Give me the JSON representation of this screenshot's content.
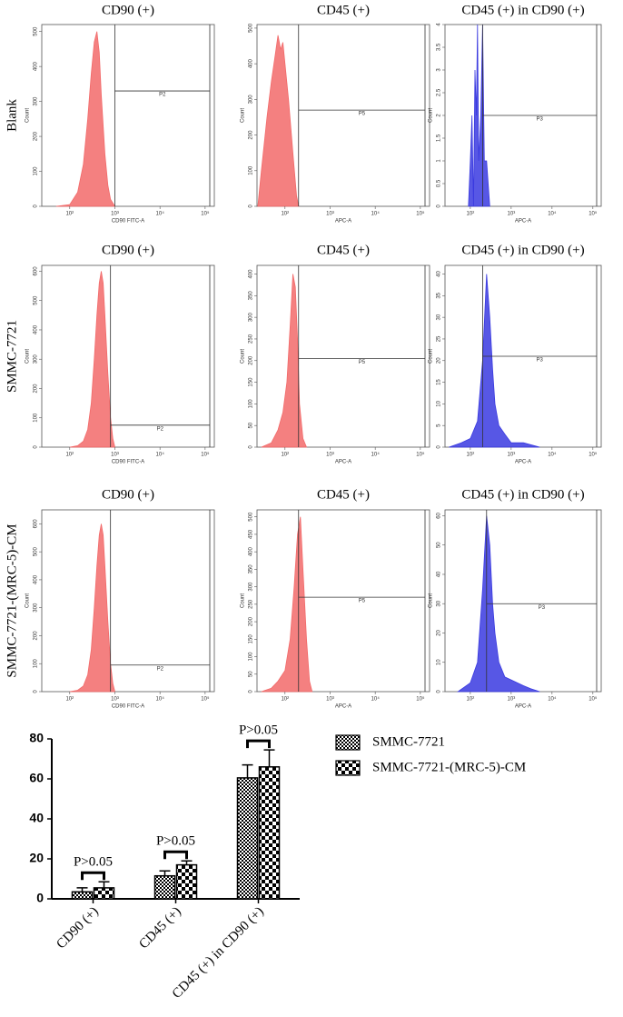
{
  "row_labels": [
    "Blank",
    "SMMC-7721",
    "SMMC-7721-(MRC-5)-CM"
  ],
  "chart_data": [
    {
      "type": "area",
      "title": "CD90 (+)",
      "ylabel": "Count",
      "xlabel": "CD90 FITC-A",
      "color": "#f26a6a",
      "log_x": true,
      "x": [
        50,
        100,
        150,
        200,
        250,
        300,
        350,
        400,
        450,
        500,
        600,
        700,
        800,
        1000
      ],
      "values": [
        0,
        5,
        40,
        120,
        250,
        380,
        470,
        500,
        440,
        320,
        150,
        60,
        20,
        0
      ],
      "xlim": [
        24,
        160000
      ],
      "ylim": [
        0,
        520
      ],
      "xticks": [
        {
          "value": 100,
          "label": "10²"
        },
        {
          "value": 1000,
          "label": "10³"
        },
        {
          "value": 10000,
          "label": "10⁴"
        },
        {
          "value": 100000,
          "label": "10⁵"
        }
      ],
      "yticks": [
        0,
        100,
        200,
        300,
        400,
        500
      ],
      "gate": {
        "label": "P2",
        "x": 1000,
        "y": 330
      }
    },
    {
      "type": "area",
      "title": "CD45 (+)",
      "ylabel": "Count",
      "xlabel": "APC-A",
      "color": "#f26a6a",
      "log_x": true,
      "x": [
        25,
        30,
        40,
        50,
        60,
        70,
        80,
        90,
        100,
        120,
        150,
        180,
        200
      ],
      "values": [
        0,
        100,
        250,
        350,
        420,
        480,
        440,
        460,
        400,
        300,
        150,
        30,
        0
      ],
      "xlim": [
        24,
        160000
      ],
      "ylim": [
        0,
        510
      ],
      "xticks": [
        {
          "value": 100,
          "label": "10²"
        },
        {
          "value": 1000,
          "label": "10³"
        },
        {
          "value": 10000,
          "label": "10⁴"
        },
        {
          "value": 100000,
          "label": "10⁵"
        }
      ],
      "yticks": [
        0,
        100,
        200,
        300,
        400,
        500
      ],
      "gate": {
        "label": "P5",
        "x": 200,
        "y": 270
      }
    },
    {
      "type": "area",
      "title": "CD45 (+) in CD90 (+)",
      "ylabel": "Count",
      "xlabel": "APC-A",
      "color": "#3a3ae0",
      "log_x": true,
      "x": [
        90,
        100,
        110,
        120,
        130,
        140,
        150,
        160,
        180,
        200,
        220,
        250,
        300
      ],
      "values": [
        0,
        1,
        2,
        0,
        3,
        2,
        4,
        1,
        2,
        4,
        1,
        1,
        0
      ],
      "xlim": [
        24,
        160000
      ],
      "ylim": [
        0,
        4
      ],
      "xticks": [
        {
          "value": 100,
          "label": "10²"
        },
        {
          "value": 1000,
          "label": "10³"
        },
        {
          "value": 10000,
          "label": "10⁴"
        },
        {
          "value": 100000,
          "label": "10⁵"
        }
      ],
      "yticks": [
        0,
        0.5,
        1,
        1.5,
        2,
        2.5,
        3,
        3.5,
        4
      ],
      "gate": {
        "label": "P3",
        "x": 200,
        "y": 2
      }
    },
    {
      "type": "area",
      "title": "CD90 (+)",
      "ylabel": "Count",
      "xlabel": "CD90 FITC-A",
      "color": "#f26a6a",
      "log_x": true,
      "x": [
        100,
        150,
        200,
        250,
        300,
        350,
        400,
        450,
        500,
        550,
        600,
        700,
        800,
        900,
        1000
      ],
      "values": [
        0,
        5,
        20,
        60,
        150,
        300,
        450,
        560,
        600,
        560,
        450,
        250,
        100,
        30,
        0
      ],
      "xlim": [
        24,
        160000
      ],
      "ylim": [
        0,
        620
      ],
      "xticks": [
        {
          "value": 100,
          "label": "10²"
        },
        {
          "value": 1000,
          "label": "10³"
        },
        {
          "value": 10000,
          "label": "10⁴"
        },
        {
          "value": 100000,
          "label": "10⁵"
        }
      ],
      "yticks": [
        0,
        100,
        200,
        300,
        400,
        500,
        600
      ],
      "gate": {
        "label": "P2",
        "x": 800,
        "y": 75
      }
    },
    {
      "type": "area",
      "title": "CD45 (+)",
      "ylabel": "Count",
      "xlabel": "APC-A",
      "color": "#f26a6a",
      "log_x": true,
      "x": [
        30,
        50,
        70,
        90,
        110,
        130,
        150,
        170,
        190,
        210,
        250,
        300
      ],
      "values": [
        0,
        10,
        40,
        80,
        150,
        280,
        400,
        370,
        250,
        100,
        20,
        0
      ],
      "xlim": [
        24,
        160000
      ],
      "ylim": [
        0,
        420
      ],
      "xticks": [
        {
          "value": 100,
          "label": "10²"
        },
        {
          "value": 1000,
          "label": "10³"
        },
        {
          "value": 10000,
          "label": "10⁴"
        },
        {
          "value": 100000,
          "label": "10⁵"
        }
      ],
      "yticks": [
        0,
        50,
        100,
        150,
        200,
        250,
        300,
        350,
        400
      ],
      "gate": {
        "label": "P5",
        "x": 200,
        "y": 205
      }
    },
    {
      "type": "area",
      "title": "CD45 (+) in CD90 (+)",
      "ylabel": "Count",
      "xlabel": "APC-A",
      "color": "#3a3ae0",
      "log_x": true,
      "x": [
        30,
        60,
        100,
        150,
        200,
        250,
        300,
        350,
        400,
        500,
        700,
        1000,
        2000,
        5000
      ],
      "values": [
        0,
        1,
        2,
        6,
        20,
        40,
        30,
        18,
        10,
        5,
        3,
        1,
        1,
        0
      ],
      "xlim": [
        24,
        160000
      ],
      "ylim": [
        0,
        42
      ],
      "xticks": [
        {
          "value": 100,
          "label": "10²"
        },
        {
          "value": 1000,
          "label": "10³"
        },
        {
          "value": 10000,
          "label": "10⁴"
        },
        {
          "value": 100000,
          "label": "10⁵"
        }
      ],
      "yticks": [
        0,
        5,
        10,
        15,
        20,
        25,
        30,
        35,
        40
      ],
      "gate": {
        "label": "P3",
        "x": 200,
        "y": 21
      }
    },
    {
      "type": "area",
      "title": "CD90 (+)",
      "ylabel": "Count",
      "xlabel": "CD90 FITC-A",
      "color": "#f26a6a",
      "log_x": true,
      "x": [
        100,
        150,
        200,
        250,
        300,
        350,
        400,
        450,
        500,
        550,
        600,
        700,
        800,
        900,
        1000
      ],
      "values": [
        0,
        5,
        20,
        60,
        150,
        300,
        450,
        560,
        600,
        560,
        450,
        250,
        100,
        30,
        0
      ],
      "xlim": [
        24,
        160000
      ],
      "ylim": [
        0,
        650
      ],
      "xticks": [
        {
          "value": 100,
          "label": "10²"
        },
        {
          "value": 1000,
          "label": "10³"
        },
        {
          "value": 10000,
          "label": "10⁴"
        },
        {
          "value": 100000,
          "label": "10⁵"
        }
      ],
      "yticks": [
        0,
        100,
        200,
        300,
        400,
        500,
        600
      ],
      "gate": {
        "label": "P2",
        "x": 800,
        "y": 95
      }
    },
    {
      "type": "area",
      "title": "CD45 (+)",
      "ylabel": "Count",
      "xlabel": "APC-A",
      "color": "#f26a6a",
      "log_x": true,
      "x": [
        30,
        50,
        70,
        100,
        130,
        160,
        190,
        220,
        250,
        300,
        350,
        400
      ],
      "values": [
        0,
        10,
        30,
        60,
        150,
        300,
        450,
        500,
        350,
        150,
        30,
        0
      ],
      "xlim": [
        24,
        160000
      ],
      "ylim": [
        0,
        520
      ],
      "xticks": [
        {
          "value": 100,
          "label": "10²"
        },
        {
          "value": 1000,
          "label": "10³"
        },
        {
          "value": 10000,
          "label": "10⁴"
        },
        {
          "value": 100000,
          "label": "10⁵"
        }
      ],
      "yticks": [
        0,
        50,
        100,
        150,
        200,
        250,
        300,
        350,
        400,
        450,
        500
      ],
      "gate": {
        "label": "P5",
        "x": 200,
        "y": 270
      }
    },
    {
      "type": "area",
      "title": "CD45 (+) in CD90 (+)",
      "ylabel": "Count",
      "xlabel": "APC-A",
      "color": "#3a3ae0",
      "log_x": true,
      "x": [
        50,
        100,
        150,
        200,
        250,
        300,
        350,
        400,
        500,
        700,
        1000,
        2000,
        3000,
        5000
      ],
      "values": [
        0,
        3,
        10,
        35,
        60,
        50,
        30,
        20,
        10,
        5,
        4,
        2,
        1,
        0
      ],
      "xlim": [
        24,
        160000
      ],
      "ylim": [
        0,
        62
      ],
      "xticks": [
        {
          "value": 100,
          "label": "10²"
        },
        {
          "value": 1000,
          "label": "10³"
        },
        {
          "value": 10000,
          "label": "10⁴"
        },
        {
          "value": 100000,
          "label": "10⁵"
        }
      ],
      "yticks": [
        0,
        10,
        20,
        30,
        40,
        50,
        60
      ],
      "gate": {
        "label": "P3",
        "x": 250,
        "y": 30
      }
    },
    {
      "type": "bar",
      "categories": [
        "CD90 (+)",
        "CD45 (+)",
        "CD45 (+) in CD90 (+)"
      ],
      "series": [
        {
          "name": "SMMC-7721",
          "pattern": "fine",
          "values": [
            3.5,
            11.5,
            60.5
          ],
          "errors": [
            2,
            2.5,
            6.5
          ]
        },
        {
          "name": "SMMC-7721-(MRC-5)-CM",
          "pattern": "coarse",
          "values": [
            5.5,
            17,
            66
          ],
          "errors": [
            3,
            2,
            8.5
          ]
        }
      ],
      "annotations": [
        "P>0.05",
        "P>0.05",
        "P>0.05"
      ],
      "ylim": [
        0,
        80
      ],
      "yticks": [
        0,
        20,
        40,
        60,
        80
      ]
    }
  ]
}
